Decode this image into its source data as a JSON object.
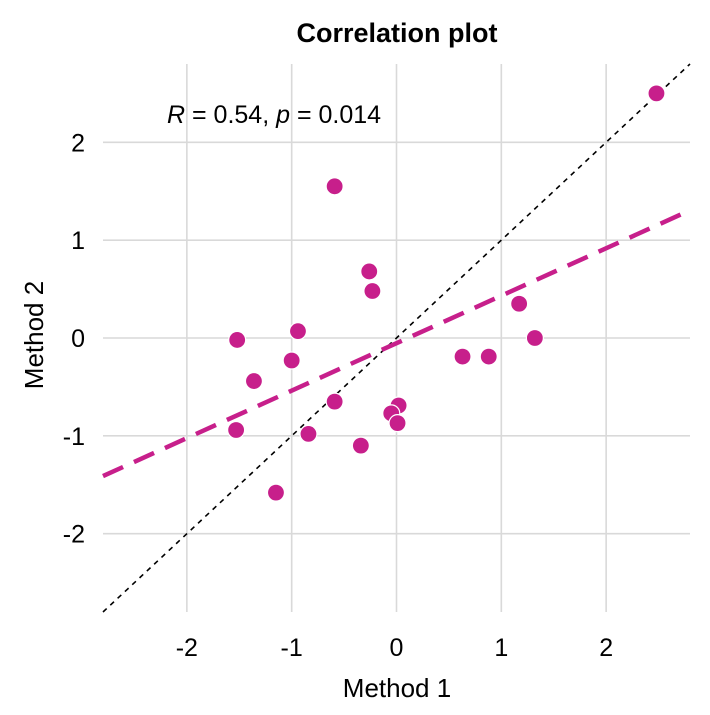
{
  "chart_data": {
    "type": "scatter",
    "title": "Correlation plot",
    "xlabel": "Method 1",
    "ylabel": "Method 2",
    "xlim": [
      -2.8,
      2.8
    ],
    "ylim": [
      -2.8,
      2.8
    ],
    "x_ticks": [
      -2,
      -1,
      0,
      1,
      2
    ],
    "y_ticks": [
      -2,
      -1,
      0,
      1,
      2
    ],
    "x_tick_labels": [
      "-2",
      "-1",
      "0",
      "1",
      "2"
    ],
    "y_tick_labels": [
      "-2",
      "-1",
      "0",
      "1",
      "2"
    ],
    "grid": true,
    "legend": "none",
    "annotation": {
      "r_symbol": "R",
      "r_text": " = 0.54, ",
      "p_symbol": "p",
      "p_text": " = 0.014"
    },
    "points": [
      {
        "x": 2.48,
        "y": 2.5
      },
      {
        "x": -0.59,
        "y": 1.55
      },
      {
        "x": -0.26,
        "y": 0.68
      },
      {
        "x": -0.23,
        "y": 0.48
      },
      {
        "x": 1.17,
        "y": 0.35
      },
      {
        "x": 1.32,
        "y": 0.0
      },
      {
        "x": -1.52,
        "y": -0.02
      },
      {
        "x": -0.94,
        "y": 0.07
      },
      {
        "x": -1.0,
        "y": -0.23
      },
      {
        "x": 0.63,
        "y": -0.19
      },
      {
        "x": 0.88,
        "y": -0.19
      },
      {
        "x": -1.36,
        "y": -0.44
      },
      {
        "x": -0.59,
        "y": -0.65
      },
      {
        "x": 0.02,
        "y": -0.69
      },
      {
        "x": -0.05,
        "y": -0.77
      },
      {
        "x": 0.01,
        "y": -0.87
      },
      {
        "x": -1.53,
        "y": -0.94
      },
      {
        "x": -0.84,
        "y": -0.98
      },
      {
        "x": -0.34,
        "y": -1.1
      },
      {
        "x": -1.15,
        "y": -1.58
      }
    ],
    "regression_line": {
      "intercept": -0.053,
      "slope": 0.485,
      "style": "dashed"
    },
    "identity_line": {
      "slope": 1,
      "intercept": 0,
      "style": "dotted"
    },
    "colors": {
      "points": "#c71f8b",
      "point_stroke": "#ffffff",
      "regression": "#c71f8b",
      "identity": "#000000"
    }
  }
}
